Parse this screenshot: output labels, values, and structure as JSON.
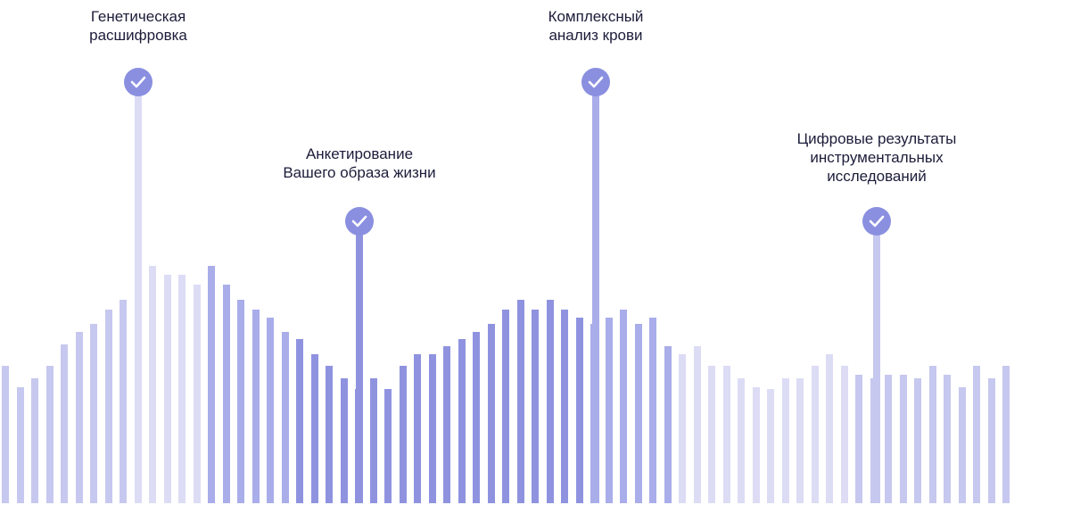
{
  "palette": {
    "light": "#dcdcf5",
    "soft": "#c6c8ef",
    "medium": "#a9ade9",
    "strong": "#8f93df",
    "check": "#8a8fe0"
  },
  "icons": {
    "milestone_icon": "check-icon"
  },
  "milestones": [
    {
      "lines": [
        "Генетическая",
        "расшифровка"
      ]
    },
    {
      "lines": [
        "Анкетирование",
        "Вашего образа жизни"
      ]
    },
    {
      "lines": [
        "Комплексный",
        "анализ крови"
      ]
    },
    {
      "lines": [
        "Цифровые результаты",
        "инструментальных",
        "исследований"
      ]
    }
  ]
}
